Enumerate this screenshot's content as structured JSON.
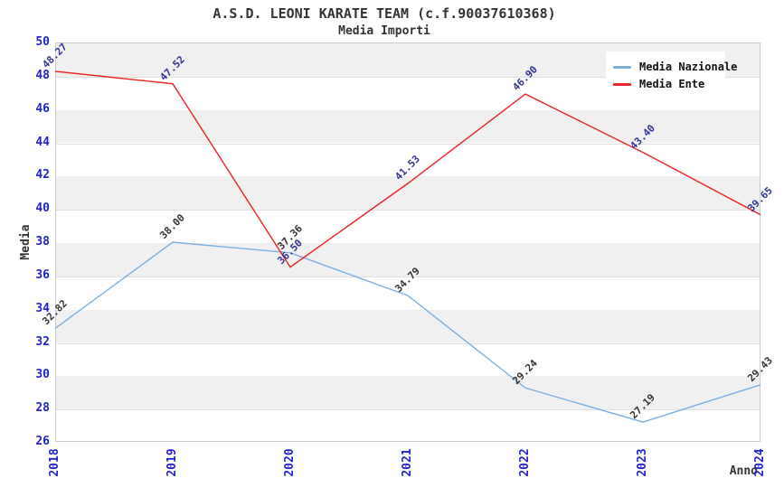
{
  "header": {
    "title": "A.S.D. LEONI KARATE TEAM (c.f.90037610368)",
    "subtitle": "Media Importi"
  },
  "chart_data": {
    "type": "line",
    "title": "A.S.D. LEONI KARATE TEAM (c.f.90037610368)",
    "subtitle": "Media Importi",
    "xlabel": "Anno",
    "ylabel": "Media",
    "categories": [
      "2018",
      "2019",
      "2020",
      "2021",
      "2022",
      "2023",
      "2024"
    ],
    "series": [
      {
        "name": "Media Nazionale",
        "color": "#7cb0e2",
        "label_color": "#333333",
        "values": [
          32.82,
          38.0,
          37.36,
          34.79,
          29.24,
          27.19,
          29.43
        ],
        "value_labels": [
          "32.82",
          "38.00",
          "37.36",
          "34.79",
          "29.24",
          "27.19",
          "29.43"
        ]
      },
      {
        "name": "Media Ente",
        "color": "#ee2222",
        "label_color": "#333399",
        "values": [
          48.27,
          47.52,
          36.5,
          41.53,
          46.9,
          43.4,
          39.65
        ],
        "value_labels": [
          "48.27",
          "47.52",
          "36.50",
          "41.53",
          "46.90",
          "43.40",
          "39.65"
        ]
      }
    ],
    "ylim": [
      26,
      50
    ],
    "ytick_step": 2,
    "legend_position": "top-right",
    "grid": "horizontal-bands-alternating",
    "colors": {
      "tick_label": "#2323cb",
      "band": "#f0f0f0",
      "plot_border": "#cccccc",
      "axis_label": "#333333"
    }
  }
}
